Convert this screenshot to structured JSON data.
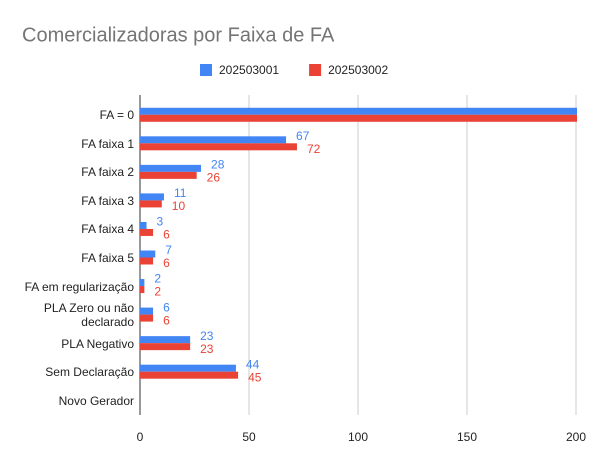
{
  "chart_data": {
    "type": "hbar",
    "title": "Comercializadoras por Faixa de FA",
    "categories": [
      "FA = 0",
      "FA faixa 1",
      "FA faixa 2",
      "FA faixa 3",
      "FA faixa 4",
      "FA faixa 5",
      "FA em regularização",
      "PLA Zero ou não declarado",
      "PLA Negativo",
      "Sem Declaração",
      "Novo Gerador"
    ],
    "series": [
      {
        "name": "202503001",
        "color": "#4285f4",
        "values": [
          210,
          67,
          28,
          11,
          3,
          7,
          2,
          6,
          23,
          44,
          null
        ]
      },
      {
        "name": "202503002",
        "color": "#ea4335",
        "values": [
          210,
          72,
          26,
          10,
          6,
          6,
          2,
          6,
          23,
          45,
          null
        ]
      }
    ],
    "xlim": [
      0,
      200
    ],
    "xticks": [
      0,
      50,
      100,
      150,
      200
    ],
    "grid": true,
    "legend": "top"
  }
}
